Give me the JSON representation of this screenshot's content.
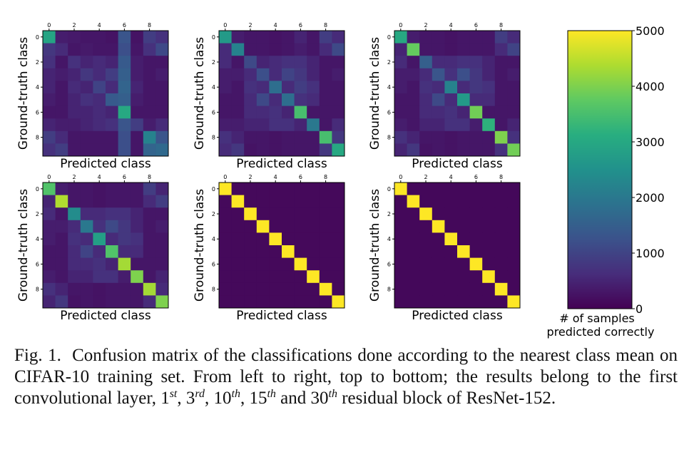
{
  "chart_data": {
    "type": "heatmap",
    "colorscale": "viridis",
    "vmin": 0,
    "vmax": 5000,
    "colorbar": {
      "ticks": [
        0,
        1000,
        2000,
        3000,
        4000,
        5000
      ],
      "tick_labels": [
        "0",
        "1000",
        "2000",
        "3000",
        "4000",
        "5000"
      ],
      "label": [
        "# of samples",
        "predicted correctly"
      ]
    },
    "x_tick_labels": [
      "0",
      "2",
      "4",
      "6",
      "8"
    ],
    "y_tick_labels": [
      "0",
      "2",
      "4",
      "6",
      "8"
    ],
    "xlabel": "Predicted class",
    "ylabel": "Ground-truth class",
    "panels": [
      {
        "matrix": [
          [
            2900,
            400,
            350,
            300,
            300,
            250,
            1300,
            250,
            900,
            700
          ],
          [
            800,
            600,
            300,
            350,
            300,
            300,
            1200,
            300,
            700,
            1100
          ],
          [
            700,
            300,
            700,
            500,
            600,
            500,
            1400,
            400,
            300,
            300
          ],
          [
            500,
            400,
            500,
            800,
            600,
            900,
            1500,
            400,
            300,
            400
          ],
          [
            500,
            300,
            600,
            500,
            1000,
            600,
            1600,
            500,
            300,
            300
          ],
          [
            400,
            300,
            500,
            700,
            600,
            1400,
            1500,
            400,
            300,
            300
          ],
          [
            300,
            300,
            500,
            500,
            600,
            500,
            3000,
            300,
            300,
            300
          ],
          [
            500,
            400,
            400,
            500,
            600,
            700,
            1300,
            900,
            400,
            600
          ],
          [
            900,
            600,
            300,
            300,
            300,
            300,
            1200,
            300,
            2200,
            1300
          ],
          [
            700,
            900,
            300,
            300,
            300,
            300,
            1200,
            300,
            1600,
            1700
          ]
        ]
      },
      {
        "matrix": [
          [
            2700,
            400,
            300,
            300,
            250,
            300,
            500,
            300,
            900,
            600
          ],
          [
            600,
            2200,
            300,
            300,
            250,
            300,
            400,
            300,
            600,
            1100
          ],
          [
            600,
            300,
            1100,
            500,
            600,
            700,
            700,
            500,
            300,
            300
          ],
          [
            400,
            400,
            600,
            1200,
            600,
            1000,
            800,
            500,
            300,
            400
          ],
          [
            400,
            300,
            700,
            600,
            1800,
            600,
            900,
            700,
            300,
            300
          ],
          [
            300,
            300,
            600,
            1100,
            600,
            1800,
            700,
            600,
            300,
            300
          ],
          [
            300,
            300,
            600,
            600,
            700,
            500,
            3500,
            300,
            300,
            300
          ],
          [
            400,
            400,
            500,
            500,
            700,
            700,
            500,
            2000,
            300,
            600
          ],
          [
            700,
            500,
            300,
            300,
            250,
            300,
            300,
            300,
            3500,
            800
          ],
          [
            600,
            800,
            250,
            300,
            250,
            300,
            300,
            300,
            800,
            3000
          ]
        ]
      },
      {
        "matrix": [
          [
            3000,
            400,
            300,
            300,
            250,
            300,
            300,
            300,
            900,
            600
          ],
          [
            500,
            3800,
            300,
            300,
            250,
            300,
            300,
            300,
            600,
            1000
          ],
          [
            600,
            300,
            1500,
            600,
            600,
            700,
            700,
            500,
            300,
            300
          ],
          [
            400,
            400,
            600,
            1300,
            700,
            1200,
            800,
            500,
            300,
            400
          ],
          [
            400,
            300,
            700,
            600,
            2200,
            600,
            800,
            700,
            300,
            300
          ],
          [
            300,
            300,
            600,
            1100,
            600,
            2700,
            600,
            600,
            300,
            300
          ],
          [
            300,
            300,
            600,
            600,
            700,
            500,
            3900,
            300,
            300,
            300
          ],
          [
            400,
            300,
            500,
            500,
            700,
            700,
            400,
            3200,
            300,
            500
          ],
          [
            700,
            500,
            300,
            300,
            250,
            300,
            300,
            300,
            4000,
            700
          ],
          [
            500,
            800,
            250,
            300,
            250,
            300,
            300,
            300,
            700,
            3900
          ]
        ]
      },
      {
        "matrix": [
          [
            3600,
            400,
            300,
            300,
            250,
            300,
            300,
            300,
            900,
            500
          ],
          [
            500,
            4400,
            300,
            300,
            250,
            300,
            300,
            300,
            600,
            900
          ],
          [
            600,
            300,
            2400,
            600,
            600,
            700,
            700,
            500,
            300,
            300
          ],
          [
            400,
            400,
            600,
            2000,
            700,
            1100,
            800,
            500,
            300,
            400
          ],
          [
            400,
            300,
            700,
            600,
            2800,
            600,
            800,
            700,
            300,
            300
          ],
          [
            300,
            300,
            600,
            1000,
            600,
            3600,
            600,
            600,
            300,
            300
          ],
          [
            300,
            300,
            600,
            600,
            700,
            500,
            4300,
            300,
            300,
            300
          ],
          [
            400,
            300,
            500,
            500,
            700,
            700,
            400,
            4000,
            300,
            500
          ],
          [
            700,
            500,
            300,
            300,
            250,
            300,
            300,
            300,
            4300,
            600
          ],
          [
            500,
            800,
            250,
            300,
            250,
            300,
            300,
            300,
            600,
            4000
          ]
        ]
      },
      {
        "matrix": [
          [
            5000,
            120,
            120,
            120,
            120,
            120,
            120,
            120,
            120,
            120
          ],
          [
            120,
            5000,
            120,
            120,
            120,
            120,
            120,
            120,
            120,
            120
          ],
          [
            120,
            120,
            5000,
            120,
            120,
            120,
            120,
            120,
            120,
            120
          ],
          [
            120,
            120,
            120,
            5000,
            120,
            120,
            120,
            120,
            120,
            120
          ],
          [
            120,
            120,
            120,
            120,
            5000,
            120,
            120,
            120,
            120,
            120
          ],
          [
            120,
            120,
            120,
            120,
            120,
            5000,
            120,
            120,
            120,
            120
          ],
          [
            120,
            120,
            120,
            120,
            120,
            120,
            5000,
            120,
            120,
            120
          ],
          [
            120,
            120,
            120,
            120,
            120,
            120,
            120,
            5000,
            120,
            120
          ],
          [
            120,
            120,
            120,
            120,
            120,
            120,
            120,
            120,
            5000,
            120
          ],
          [
            120,
            120,
            120,
            120,
            120,
            120,
            120,
            120,
            120,
            5000
          ]
        ]
      },
      {
        "matrix": [
          [
            5000,
            100,
            100,
            100,
            100,
            100,
            100,
            100,
            100,
            100
          ],
          [
            100,
            5000,
            100,
            100,
            100,
            100,
            100,
            100,
            100,
            100
          ],
          [
            100,
            100,
            5000,
            100,
            100,
            100,
            100,
            100,
            100,
            100
          ],
          [
            100,
            100,
            100,
            5000,
            100,
            100,
            100,
            100,
            100,
            100
          ],
          [
            100,
            100,
            100,
            100,
            5000,
            100,
            100,
            100,
            100,
            100
          ],
          [
            100,
            100,
            100,
            100,
            100,
            5000,
            100,
            100,
            100,
            100
          ],
          [
            100,
            100,
            100,
            100,
            100,
            100,
            5000,
            100,
            100,
            100
          ],
          [
            100,
            100,
            100,
            100,
            100,
            100,
            100,
            5000,
            100,
            100
          ],
          [
            100,
            100,
            100,
            100,
            100,
            100,
            100,
            100,
            5000,
            100
          ],
          [
            100,
            100,
            100,
            100,
            100,
            100,
            100,
            100,
            100,
            5000
          ]
        ]
      }
    ]
  },
  "caption": {
    "prefix": "Fig. 1.",
    "text_main": "Confusion matrix of the classifications done according to the nearest class mean on CIFAR-10 training set. From left to right, top to bottom; the results belong to the first convolutional layer, ",
    "items": [
      {
        "num": "1",
        "sup": "st",
        "sep": ", "
      },
      {
        "num": "3",
        "sup": "rd",
        "sep": ", "
      },
      {
        "num": "10",
        "sup": "th",
        "sep": ", "
      },
      {
        "num": "15",
        "sup": "th",
        "sep": " and "
      },
      {
        "num": "30",
        "sup": "th",
        "sep": ""
      }
    ],
    "text_end": " residual block of ResNet-152."
  }
}
